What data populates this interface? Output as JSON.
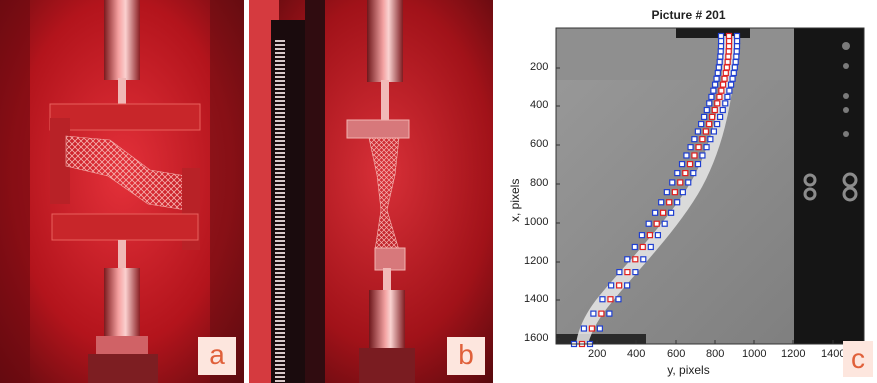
{
  "panels": {
    "a": {
      "badge": "a"
    },
    "b": {
      "badge": "b"
    },
    "c": {
      "badge": "c",
      "title": "Picture # 201",
      "xlabel": "y, pixels",
      "ylabel": "x, pixels",
      "y_ticks": [
        "200",
        "400",
        "600",
        "800",
        "1000",
        "1200",
        "1400",
        "1600"
      ],
      "x_ticks": [
        "200",
        "400",
        "600",
        "800",
        "1000",
        "1200",
        "1400"
      ]
    }
  },
  "colors": {
    "lab_red": "#c41a1a",
    "marker_blue": "#1f3fd0",
    "marker_red": "#e02020"
  }
}
